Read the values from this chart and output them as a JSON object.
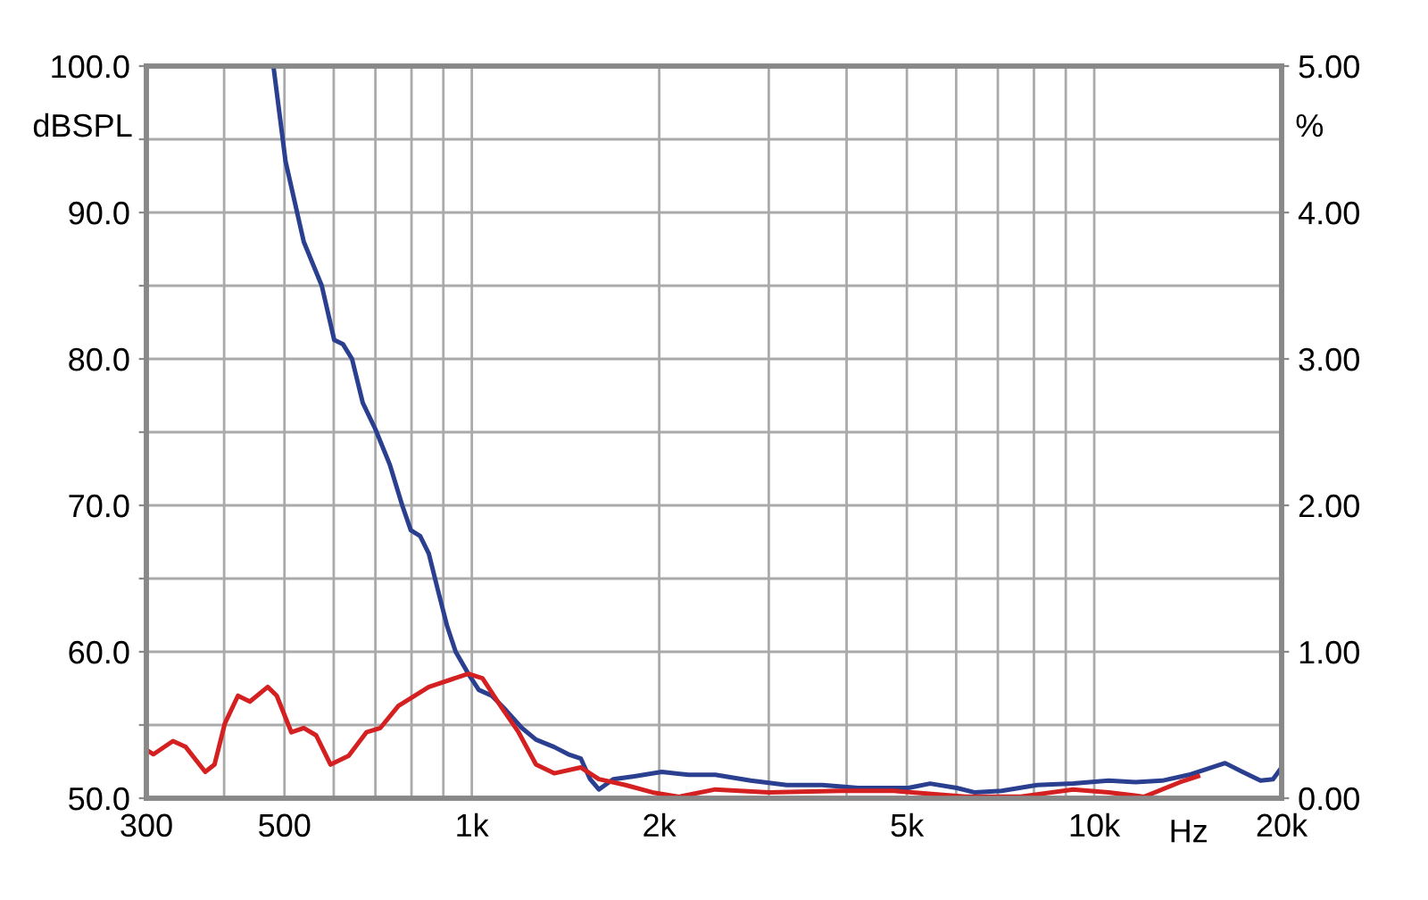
{
  "chart_data": {
    "type": "line",
    "xlabel": "Hz",
    "ylabel": "dBSPL",
    "y2label": "%",
    "log": "x",
    "grid": true,
    "marker": "none",
    "line_style": "solid",
    "xlim": [
      300,
      20000
    ],
    "xticks": [
      300,
      {
        "value": 400,
        "label": null
      },
      500,
      {
        "value": 600,
        "label": null
      },
      {
        "value": 700,
        "label": null
      },
      {
        "value": 800,
        "label": null
      },
      {
        "value": 900,
        "label": null
      },
      {
        "value": 1000,
        "label": "1k"
      },
      {
        "value": 2000,
        "label": "2k"
      },
      {
        "value": 3000,
        "label": null
      },
      {
        "value": 4000,
        "label": null
      },
      {
        "value": 5000,
        "label": "5k"
      },
      {
        "value": 6000,
        "label": null
      },
      {
        "value": 7000,
        "label": null
      },
      {
        "value": 8000,
        "label": null
      },
      {
        "value": 9000,
        "label": null
      },
      {
        "value": 10000,
        "label": "10k"
      },
      {
        "value": 20000,
        "label": "20k"
      }
    ],
    "ylim": [
      50,
      100
    ],
    "yticks": [
      {
        "value": 50,
        "label": "50.0"
      },
      {
        "value": 55,
        "label": null
      },
      {
        "value": 60,
        "label": "60.0"
      },
      {
        "value": 65,
        "label": null
      },
      {
        "value": 70,
        "label": "70.0"
      },
      {
        "value": 75,
        "label": null
      },
      {
        "value": 80,
        "label": "80.0"
      },
      {
        "value": 85,
        "label": null
      },
      {
        "value": 90,
        "label": "90.0"
      },
      {
        "value": 95,
        "label": null
      },
      {
        "value": 100,
        "label": "100.0"
      }
    ],
    "y2lim": [
      0,
      5
    ],
    "y2ticks": [
      {
        "value": 0,
        "label": "0.00"
      },
      {
        "value": 1,
        "label": "1.00"
      },
      {
        "value": 2,
        "label": "2.00"
      },
      {
        "value": 3,
        "label": "3.00"
      },
      {
        "value": 4,
        "label": "4.00"
      },
      {
        "value": 5,
        "label": "5.00"
      }
    ],
    "series": [
      {
        "color": "#2a3f8f",
        "axis": "y2",
        "x": [
          480,
          502,
          537,
          574,
          601,
          621,
          642,
          668,
          700,
          738,
          773,
          798,
          826,
          853,
          881,
          912,
          942,
          987,
          1026,
          1077,
          1135,
          1203,
          1268,
          1356,
          1429,
          1497,
          1549,
          1600,
          1687,
          1824,
          2019,
          2229,
          2461,
          2806,
          3206,
          3657,
          4178,
          5024,
          5448,
          6013,
          6415,
          7097,
          8094,
          9248,
          10548,
          11646,
          12856,
          14195,
          16223,
          17305,
          18498,
          19372,
          20000
        ],
        "values": [
          5.0,
          4.35,
          3.8,
          3.5,
          3.13,
          3.1,
          3.0,
          2.7,
          2.52,
          2.28,
          2.0,
          1.83,
          1.79,
          1.67,
          1.43,
          1.18,
          1.0,
          0.85,
          0.74,
          0.7,
          0.6,
          0.48,
          0.4,
          0.35,
          0.3,
          0.27,
          0.13,
          0.06,
          0.13,
          0.15,
          0.18,
          0.16,
          0.16,
          0.12,
          0.09,
          0.09,
          0.07,
          0.07,
          0.1,
          0.07,
          0.04,
          0.05,
          0.09,
          0.1,
          0.12,
          0.11,
          0.12,
          0.16,
          0.24,
          0.18,
          0.12,
          0.13,
          0.21
        ]
      },
      {
        "color": "#d42020",
        "axis": "y2",
        "x": [
          300,
          308,
          331,
          347,
          373,
          386,
          401,
          421,
          440,
          470,
          486,
          513,
          537,
          562,
          593,
          634,
          677,
          713,
          762,
          853,
          987,
          1040,
          1112,
          1189,
          1268,
          1356,
          1497,
          1600,
          1766,
          1950,
          2153,
          2461,
          3000,
          3909,
          4767,
          6210,
          7573,
          9248,
          10548,
          12028,
          13740,
          14681
        ],
        "values": [
          0.33,
          0.3,
          0.39,
          0.35,
          0.18,
          0.23,
          0.51,
          0.7,
          0.66,
          0.76,
          0.7,
          0.45,
          0.48,
          0.43,
          0.23,
          0.29,
          0.45,
          0.48,
          0.63,
          0.76,
          0.85,
          0.82,
          0.63,
          0.45,
          0.23,
          0.17,
          0.21,
          0.13,
          0.09,
          0.04,
          0.01,
          0.06,
          0.04,
          0.05,
          0.05,
          0.01,
          0.01,
          0.06,
          0.04,
          0.01,
          0.11,
          0.15
        ]
      }
    ]
  }
}
